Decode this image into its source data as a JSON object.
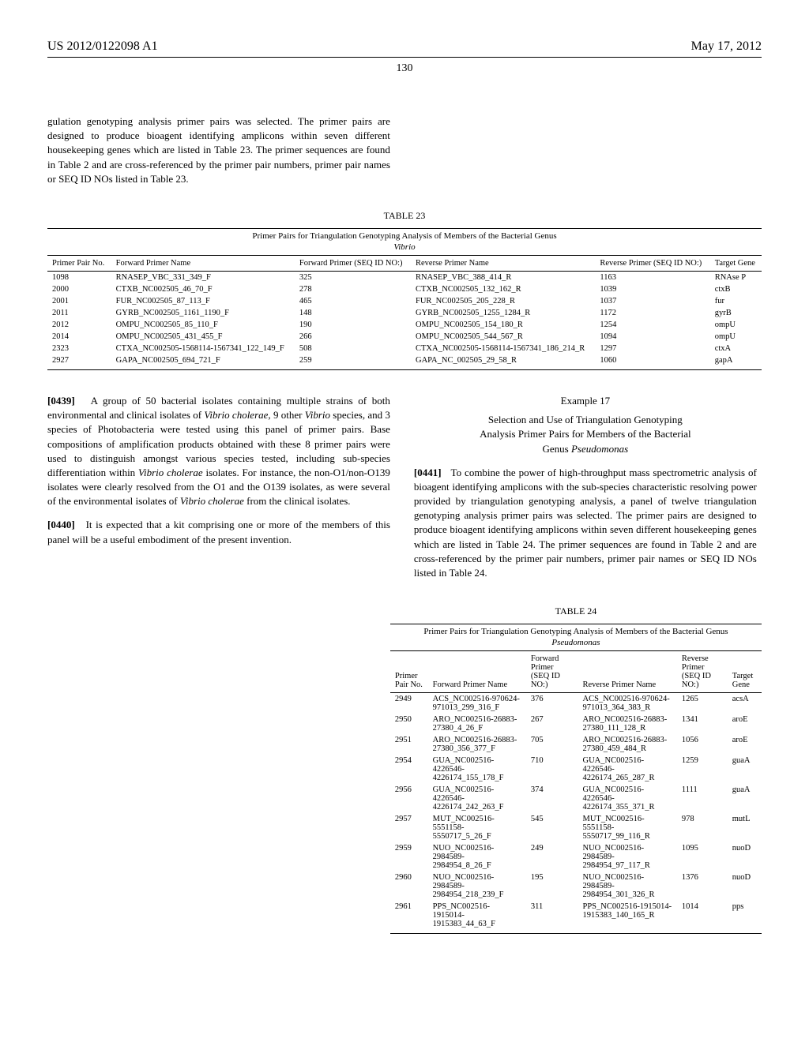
{
  "header": {
    "patent_id": "US 2012/0122098 A1",
    "pub_date": "May 17, 2012"
  },
  "page_number": "130",
  "intro_paragraph": "gulation genotyping analysis primer pairs was selected. The primer pairs are designed to produce bioagent identifying amplicons within seven different housekeeping genes which are listed in Table 23. The primer sequences are found in Table 2 and are cross-referenced by the primer pair numbers, primer pair names or SEQ ID NOs listed in Table 23.",
  "table23": {
    "label": "TABLE 23",
    "caption": "Primer Pairs for Triangulation Genotyping Analysis of Members of the Bacterial Genus",
    "caption_italic": "Vibrio",
    "columns": {
      "c1": "Primer Pair No.",
      "c2": "Forward Primer Name",
      "c3": "Forward Primer (SEQ ID NO:)",
      "c4": "Reverse Primer Name",
      "c5": "Reverse Primer (SEQ ID NO:)",
      "c6": "Target Gene"
    },
    "rows": [
      {
        "c1": "1098",
        "c2": "RNASEP_VBC_331_349_F",
        "c3": "325",
        "c4": "RNASEP_VBC_388_414_R",
        "c5": "1163",
        "c6": "RNAse P"
      },
      {
        "c1": "2000",
        "c2": "CTXB_NC002505_46_70_F",
        "c3": "278",
        "c4": "CTXB_NC002505_132_162_R",
        "c5": "1039",
        "c6": "ctxB"
      },
      {
        "c1": "2001",
        "c2": "FUR_NC002505_87_113_F",
        "c3": "465",
        "c4": "FUR_NC002505_205_228_R",
        "c5": "1037",
        "c6": "fur"
      },
      {
        "c1": "2011",
        "c2": "GYRB_NC002505_1161_1190_F",
        "c3": "148",
        "c4": "GYRB_NC002505_1255_1284_R",
        "c5": "1172",
        "c6": "gyrB"
      },
      {
        "c1": "2012",
        "c2": "OMPU_NC002505_85_110_F",
        "c3": "190",
        "c4": "OMPU_NC002505_154_180_R",
        "c5": "1254",
        "c6": "ompU"
      },
      {
        "c1": "2014",
        "c2": "OMPU_NC002505_431_455_F",
        "c3": "266",
        "c4": "OMPU_NC002505_544_567_R",
        "c5": "1094",
        "c6": "ompU"
      },
      {
        "c1": "2323",
        "c2": "CTXA_NC002505-1568114-1567341_122_149_F",
        "c3": "508",
        "c4": "CTXA_NC002505-1568114-1567341_186_214_R",
        "c5": "1297",
        "c6": "ctxA"
      },
      {
        "c1": "2927",
        "c2": "GAPA_NC002505_694_721_F",
        "c3": "259",
        "c4": "GAPA_NC_002505_29_58_R",
        "c5": "1060",
        "c6": "gapA"
      }
    ]
  },
  "para0439": {
    "num": "[0439]",
    "text_before": "A group of 50 bacterial isolates containing multiple strains of both environmental and clinical isolates of ",
    "italic1": "Vibrio cholerae,",
    "text_mid1": " 9 other ",
    "italic2": "Vibrio",
    "text_mid2": " species, and 3 species of Photobacteria were tested using this panel of primer pairs. Base compositions of amplification products obtained with these 8 primer pairs were used to distinguish amongst various species tested, including sub-species differentiation within ",
    "italic3": "Vibrio cholerae",
    "text_mid3": " isolates. For instance, the non-O1/non-O139 isolates were clearly resolved from the O1 and the O139 isolates, as were several of the environmental isolates of ",
    "italic4": "Vibrio cholerae",
    "text_after": " from the clinical isolates."
  },
  "para0440": {
    "num": "[0440]",
    "text": "It is expected that a kit comprising one or more of the members of this panel will be a useful embodiment of the present invention."
  },
  "example17": {
    "heading": "Example 17",
    "subtitle_line1": "Selection and Use of Triangulation Genotyping",
    "subtitle_line2": "Analysis Primer Pairs for Members of the Bacterial",
    "subtitle_line3_prefix": "Genus ",
    "subtitle_line3_italic": "Pseudomonas"
  },
  "para0441": {
    "num": "[0441]",
    "text": "To combine the power of high-throughput mass spectrometric analysis of bioagent identifying amplicons with the sub-species characteristic resolving power provided by triangulation genotyping analysis, a panel of twelve triangulation genotyping analysis primer pairs was selected. The primer pairs are designed to produce bioagent identifying amplicons within seven different housekeeping genes which are listed in Table 24. The primer sequences are found in Table 2 and are cross-referenced by the primer pair numbers, primer pair names or SEQ ID NOs listed in Table 24."
  },
  "table24": {
    "label": "TABLE 24",
    "caption": "Primer Pairs for Triangulation Genotyping Analysis of Members of the Bacterial Genus",
    "caption_italic": "Pseudomonas",
    "columns": {
      "c1": "Primer Pair No.",
      "c2": "Forward Primer Name",
      "c3": "Forward Primer (SEQ ID NO:)",
      "c4": "Reverse Primer Name",
      "c5": "Reverse Primer (SEQ ID NO:)",
      "c6": "Target Gene"
    },
    "rows": [
      {
        "c1": "2949",
        "c2": "ACS_NC002516-970624-971013_299_316_F",
        "c3": "376",
        "c4": "ACS_NC002516-970624-971013_364_383_R",
        "c5": "1265",
        "c6": "acsA"
      },
      {
        "c1": "2950",
        "c2": "ARO_NC002516-26883-27380_4_26_F",
        "c3": "267",
        "c4": "ARO_NC002516-26883-27380_111_128_R",
        "c5": "1341",
        "c6": "aroE"
      },
      {
        "c1": "2951",
        "c2": "ARO_NC002516-26883-27380_356_377_F",
        "c3": "705",
        "c4": "ARO_NC002516-26883-27380_459_484_R",
        "c5": "1056",
        "c6": "aroE"
      },
      {
        "c1": "2954",
        "c2": "GUA_NC002516-4226546-4226174_155_178_F",
        "c3": "710",
        "c4": "GUA_NC002516-4226546-4226174_265_287_R",
        "c5": "1259",
        "c6": "guaA"
      },
      {
        "c1": "2956",
        "c2": "GUA_NC002516-4226546-4226174_242_263_F",
        "c3": "374",
        "c4": "GUA_NC002516-4226546-4226174_355_371_R",
        "c5": "1111",
        "c6": "guaA"
      },
      {
        "c1": "2957",
        "c2": "MUT_NC002516-5551158-5550717_5_26_F",
        "c3": "545",
        "c4": "MUT_NC002516-5551158-5550717_99_116_R",
        "c5": "978",
        "c6": "mutL"
      },
      {
        "c1": "2959",
        "c2": "NUO_NC002516-2984589-2984954_8_26_F",
        "c3": "249",
        "c4": "NUO_NC002516-2984589-2984954_97_117_R",
        "c5": "1095",
        "c6": "nuoD"
      },
      {
        "c1": "2960",
        "c2": "NUO_NC002516-2984589-2984954_218_239_F",
        "c3": "195",
        "c4": "NUO_NC002516-2984589-2984954_301_326_R",
        "c5": "1376",
        "c6": "nuoD"
      },
      {
        "c1": "2961",
        "c2": "PPS_NC002516-1915014-1915383_44_63_F",
        "c3": "311",
        "c4": "PPS_NC002516-1915014-1915383_140_165_R",
        "c5": "1014",
        "c6": "pps"
      }
    ]
  }
}
